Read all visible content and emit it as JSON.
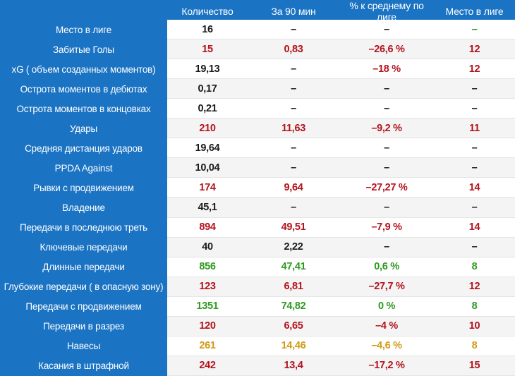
{
  "colors": {
    "header_bg": "#1b73c3",
    "black": "#1a1a1a",
    "red": "#b4121c",
    "green": "#2e9a1f",
    "orange": "#d19a14"
  },
  "headers": [
    "Количество",
    "За 90 мин",
    "% к среднему по лиге",
    "Место в лиге"
  ],
  "rows": [
    {
      "label": "Место в лиге",
      "values": [
        "16",
        "–",
        "–",
        "–"
      ],
      "colors": [
        "black",
        "black",
        "black",
        "green"
      ]
    },
    {
      "label": "Забитые Голы",
      "values": [
        "15",
        "0,83",
        "–26,6 %",
        "12"
      ],
      "colors": [
        "red",
        "red",
        "red",
        "red"
      ]
    },
    {
      "label": "xG ( объем созданных моментов)",
      "values": [
        "19,13",
        "–",
        "–18 %",
        "12"
      ],
      "colors": [
        "black",
        "black",
        "red",
        "red"
      ]
    },
    {
      "label": "Острота моментов в дебютах",
      "values": [
        "0,17",
        "–",
        "–",
        "–"
      ],
      "colors": [
        "black",
        "black",
        "black",
        "black"
      ]
    },
    {
      "label": "Острота моментов в концовках",
      "values": [
        "0,21",
        "–",
        "–",
        "–"
      ],
      "colors": [
        "black",
        "black",
        "black",
        "black"
      ]
    },
    {
      "label": "Удары",
      "values": [
        "210",
        "11,63",
        "–9,2 %",
        "11"
      ],
      "colors": [
        "red",
        "red",
        "red",
        "red"
      ]
    },
    {
      "label": "Средняя дистанция ударов",
      "values": [
        "19,64",
        "–",
        "–",
        "–"
      ],
      "colors": [
        "black",
        "black",
        "black",
        "black"
      ]
    },
    {
      "label": "PPDA Against",
      "values": [
        "10,04",
        "–",
        "–",
        "–"
      ],
      "colors": [
        "black",
        "black",
        "black",
        "black"
      ]
    },
    {
      "label": "Рывки с продвижением",
      "values": [
        "174",
        "9,64",
        "–27,27 %",
        "14"
      ],
      "colors": [
        "red",
        "red",
        "red",
        "red"
      ]
    },
    {
      "label": "Владение",
      "values": [
        "45,1",
        "–",
        "–",
        "–"
      ],
      "colors": [
        "black",
        "black",
        "black",
        "black"
      ]
    },
    {
      "label": "Передачи в последнюю треть",
      "values": [
        "894",
        "49,51",
        "–7,9 %",
        "14"
      ],
      "colors": [
        "red",
        "red",
        "red",
        "red"
      ]
    },
    {
      "label": "Ключевые передачи",
      "values": [
        "40",
        "2,22",
        "–",
        "–"
      ],
      "colors": [
        "black",
        "black",
        "black",
        "black"
      ]
    },
    {
      "label": "Длинные передачи",
      "values": [
        "856",
        "47,41",
        "0,6 %",
        "8"
      ],
      "colors": [
        "green",
        "green",
        "green",
        "green"
      ]
    },
    {
      "label": "Глубокие передачи ( в опасную зону)",
      "values": [
        "123",
        "6,81",
        "–27,7 %",
        "12"
      ],
      "colors": [
        "red",
        "red",
        "red",
        "red"
      ]
    },
    {
      "label": "Передачи с продвижением",
      "values": [
        "1351",
        "74,82",
        "0 %",
        "8"
      ],
      "colors": [
        "green",
        "green",
        "green",
        "green"
      ]
    },
    {
      "label": "Передачи в разрез",
      "values": [
        "120",
        "6,65",
        "–4 %",
        "10"
      ],
      "colors": [
        "red",
        "red",
        "red",
        "red"
      ]
    },
    {
      "label": "Навесы",
      "values": [
        "261",
        "14,46",
        "–4,6 %",
        "8"
      ],
      "colors": [
        "orange",
        "orange",
        "orange",
        "orange"
      ]
    },
    {
      "label": "Касания в штрафной",
      "values": [
        "242",
        "13,4",
        "–17,2 %",
        "15"
      ],
      "colors": [
        "red",
        "red",
        "red",
        "red"
      ]
    }
  ]
}
